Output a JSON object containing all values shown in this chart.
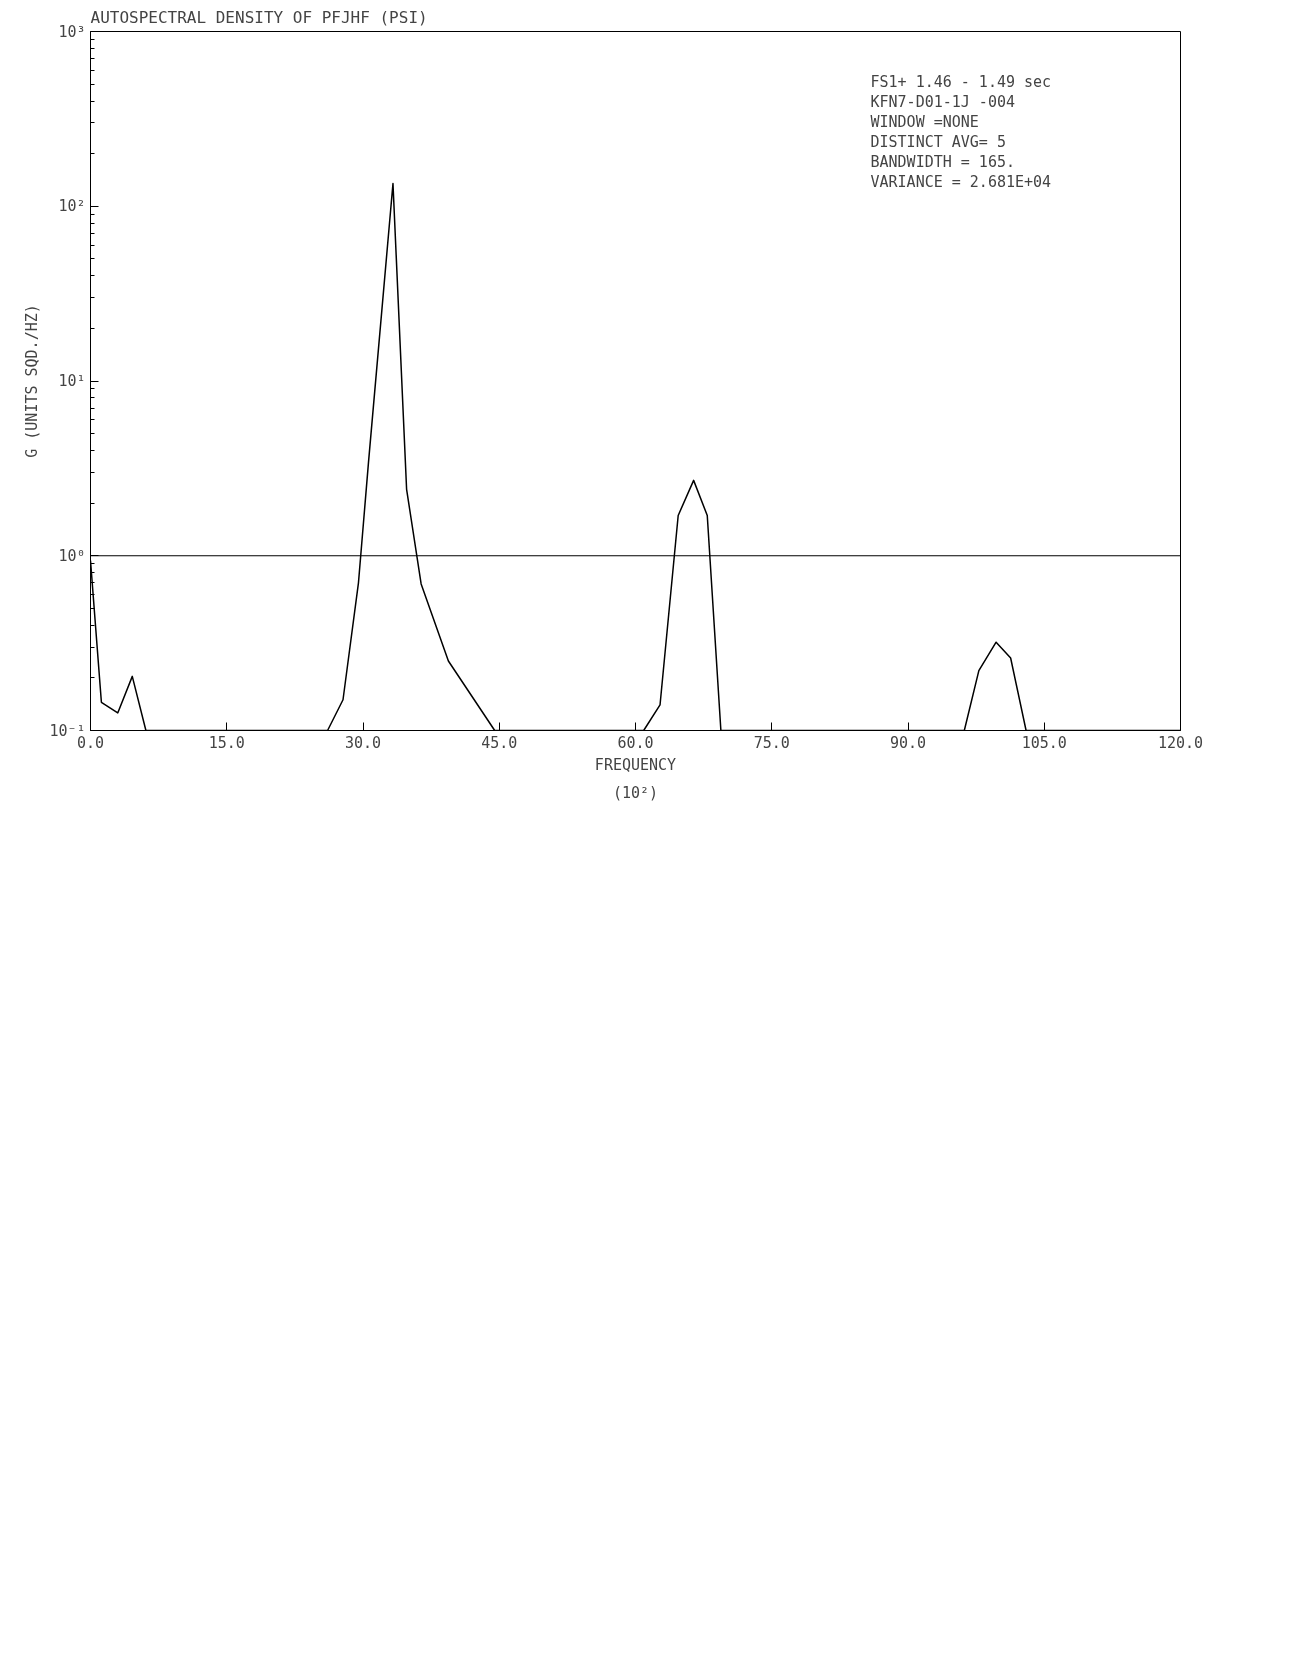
{
  "chart_data": {
    "type": "line",
    "title": "AUTOSPECTRAL DENSITY OF PFJHF (PSI)",
    "xlabel": "FREQUENCY",
    "ylabel": "G (UNITS SQD./HZ)",
    "annotations": [
      "(10²)",
      "FS1+ 1.46 - 1.49 sec",
      "KFN7-D01-1J -004",
      "WINDOW        =NONE",
      "DISTINCT AVG=      5",
      "BANDWIDTH    =     165.",
      "VARIANCE      =   2.681E+04"
    ],
    "x": [
      0,
      1.2,
      3.0,
      4.6,
      6.1,
      26.1,
      27.8,
      29.5,
      30.6,
      33.3,
      34.8,
      36.4,
      39.4,
      44.5,
      60.9,
      62.7,
      64.7,
      66.4,
      67.9,
      69.4,
      96.2,
      97.8,
      99.7,
      101.3,
      103,
      120
    ],
    "series": [
      {
        "color": "#000000",
        "values": [
          0.94,
          0.145,
          0.126,
          0.204,
          0.1,
          0.1,
          0.15,
          0.7,
          3.4,
          135,
          2.4,
          0.69,
          0.25,
          0.1,
          0.1,
          0.14,
          1.7,
          2.7,
          1.7,
          0.1,
          0.1,
          0.22,
          0.32,
          0.26,
          0.1,
          0.1
        ]
      }
    ],
    "xlim": [
      0,
      120
    ],
    "ylim": [
      0.1,
      1000
    ],
    "log": "y",
    "xticks": [
      {
        "value": 0,
        "label": "0.0"
      },
      {
        "value": 15,
        "label": "15.0"
      },
      {
        "value": 30,
        "label": "30.0"
      },
      {
        "value": 45,
        "label": "45.0"
      },
      {
        "value": 60,
        "label": "60.0"
      },
      {
        "value": 75,
        "label": "75.0"
      },
      {
        "value": 90,
        "label": "90.0"
      },
      {
        "value": 105,
        "label": "105.0"
      },
      {
        "value": 120,
        "label": "120.0"
      }
    ],
    "yticks": [
      {
        "value": 0.1,
        "label": "10⁻¹"
      },
      {
        "value": 1,
        "label": "10⁰"
      },
      {
        "value": 10,
        "label": "10¹"
      },
      {
        "value": 100,
        "label": "10²"
      },
      {
        "value": 1000,
        "label": "10³"
      }
    ],
    "ref_lines": [
      {
        "axis": "y",
        "value": 1,
        "color": "#000000"
      }
    ],
    "grid": false,
    "line_style": "solid",
    "marker": "none"
  }
}
